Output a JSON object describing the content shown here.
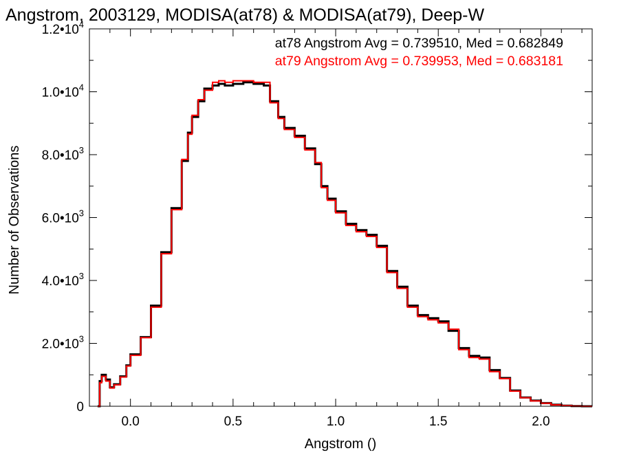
{
  "chart_data": {
    "type": "line",
    "step": true,
    "title": "Angstrom, 2003129, MODISA(at78) & MODISA(at79), Deep-W",
    "xlabel": "Angstrom ()",
    "ylabel": "Number of Observations",
    "xlim": [
      -0.2,
      2.25
    ],
    "ylim": [
      0,
      12000
    ],
    "x_ticks": [
      0.0,
      0.5,
      1.0,
      1.5,
      2.0
    ],
    "x_tick_labels": [
      "0.0",
      "0.5",
      "1.0",
      "1.5",
      "2.0"
    ],
    "y_ticks": [
      0,
      2000,
      4000,
      6000,
      8000,
      10000,
      12000
    ],
    "y_tick_labels": [
      {
        "mantissa": "0",
        "exp": ""
      },
      {
        "mantissa": "2.0•10",
        "exp": "3"
      },
      {
        "mantissa": "4.0•10",
        "exp": "3"
      },
      {
        "mantissa": "6.0•10",
        "exp": "3"
      },
      {
        "mantissa": "8.0•10",
        "exp": "3"
      },
      {
        "mantissa": "1.0•10",
        "exp": "4"
      },
      {
        "mantissa": "1.2•10",
        "exp": "4"
      }
    ],
    "grid": false,
    "annotations": [
      {
        "text": "at78 Angstrom Avg = 0.739510, Med = 0.682849",
        "color": "#000000"
      },
      {
        "text": "at79 Angstrom Avg = 0.739953, Med = 0.683181",
        "color": "#ff0000"
      }
    ],
    "series": [
      {
        "color": "#000000",
        "x": [
          -0.16,
          -0.15,
          -0.14,
          -0.12,
          -0.1,
          -0.08,
          -0.05,
          -0.02,
          0.0,
          0.05,
          0.1,
          0.15,
          0.2,
          0.25,
          0.28,
          0.3,
          0.33,
          0.36,
          0.4,
          0.43,
          0.46,
          0.5,
          0.55,
          0.6,
          0.65,
          0.68,
          0.72,
          0.75,
          0.8,
          0.85,
          0.9,
          0.93,
          0.96,
          1.0,
          1.05,
          1.1,
          1.15,
          1.2,
          1.25,
          1.3,
          1.35,
          1.4,
          1.45,
          1.5,
          1.55,
          1.6,
          1.65,
          1.7,
          1.75,
          1.8,
          1.85,
          1.9,
          1.95,
          2.0,
          2.05,
          2.1,
          2.15,
          2.2,
          2.25
        ],
        "y": [
          0,
          800,
          1000,
          850,
          600,
          700,
          950,
          1300,
          1650,
          2200,
          3200,
          4900,
          6300,
          7800,
          8700,
          9200,
          9700,
          10100,
          10200,
          10250,
          10200,
          10250,
          10300,
          10250,
          10200,
          9700,
          9200,
          8850,
          8600,
          8200,
          7700,
          7000,
          6600,
          6200,
          5800,
          5600,
          5450,
          5100,
          4300,
          3800,
          3200,
          2900,
          2800,
          2700,
          2400,
          1850,
          1600,
          1550,
          1150,
          900,
          500,
          280,
          180,
          100,
          50,
          20,
          5,
          0,
          0
        ]
      },
      {
        "color": "#ff0000",
        "x": [
          -0.16,
          -0.15,
          -0.14,
          -0.12,
          -0.1,
          -0.08,
          -0.05,
          -0.02,
          0.0,
          0.05,
          0.1,
          0.15,
          0.2,
          0.25,
          0.28,
          0.3,
          0.33,
          0.36,
          0.4,
          0.43,
          0.46,
          0.5,
          0.55,
          0.6,
          0.65,
          0.68,
          0.72,
          0.75,
          0.8,
          0.85,
          0.9,
          0.93,
          0.96,
          1.0,
          1.05,
          1.1,
          1.15,
          1.2,
          1.25,
          1.3,
          1.35,
          1.4,
          1.45,
          1.5,
          1.55,
          1.6,
          1.65,
          1.7,
          1.75,
          1.8,
          1.85,
          1.9,
          1.95,
          2.0,
          2.05,
          2.1,
          2.15,
          2.2,
          2.25
        ],
        "y": [
          0,
          750,
          950,
          800,
          580,
          680,
          930,
          1280,
          1620,
          2180,
          3150,
          4850,
          6250,
          7850,
          8650,
          9250,
          9750,
          10050,
          10300,
          10350,
          10300,
          10350,
          10350,
          10300,
          10300,
          9650,
          9150,
          8800,
          8550,
          8150,
          7750,
          6950,
          6550,
          6150,
          5750,
          5550,
          5400,
          5050,
          4250,
          3750,
          3150,
          2850,
          2750,
          2650,
          2450,
          1800,
          1550,
          1500,
          1100,
          880,
          480,
          270,
          170,
          95,
          45,
          18,
          5,
          0,
          0
        ]
      }
    ]
  }
}
